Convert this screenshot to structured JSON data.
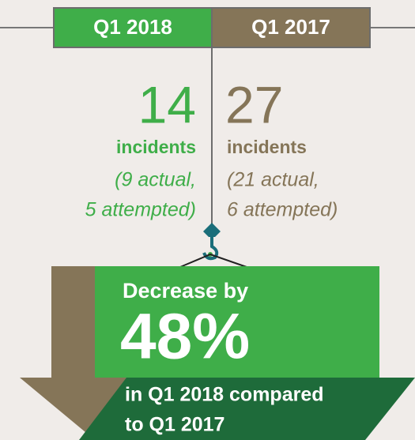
{
  "header": {
    "left": "Q1 2018",
    "right": "Q1 2017"
  },
  "left": {
    "count": "14",
    "unit": "incidents",
    "detail": [
      "(9 actual,",
      "5 attempted)"
    ]
  },
  "right": {
    "count": "27",
    "unit": "incidents",
    "detail": [
      "(21 actual,",
      "6 attempted)"
    ]
  },
  "result": {
    "lead": "Decrease by",
    "percent": "48%",
    "tail": [
      "in Q1 2018 compared",
      "to Q1 2017"
    ]
  }
}
